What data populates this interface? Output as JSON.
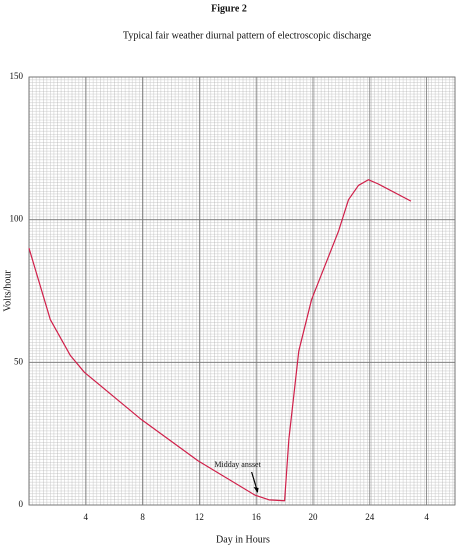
{
  "chart_data": {
    "type": "line",
    "title": "Figure 2",
    "subtitle": "Typical fair weather diurnal pattern of electroscopic discharge",
    "x_label": "Day in Hours",
    "y_label": "Volts/hour",
    "x": [
      0,
      1.5,
      2.9,
      3.9,
      7.9,
      11.9,
      15.9,
      16.9,
      18,
      18.3,
      19,
      19.9,
      21.8,
      22.5,
      23.2,
      23.9,
      24.6,
      26.9
    ],
    "series": [
      {
        "name": "Electroscopic discharge",
        "color": "#d0204a",
        "values": [
          90,
          65,
          52.5,
          46.5,
          30,
          15.5,
          3.5,
          1.8,
          1.5,
          23,
          54,
          72,
          96,
          107,
          112,
          114,
          112.5,
          106.5
        ]
      }
    ],
    "xlim": [
      0,
      30
    ],
    "ylim": [
      0,
      150
    ],
    "xticks": [
      4,
      8,
      12,
      16,
      20,
      24,
      {
        "value": 28,
        "label": "4"
      }
    ],
    "yticks": [
      0,
      50,
      100,
      150
    ],
    "grid": true,
    "annotation": {
      "text": "Midday ansset",
      "x": 16.1,
      "y": 3.5
    }
  }
}
